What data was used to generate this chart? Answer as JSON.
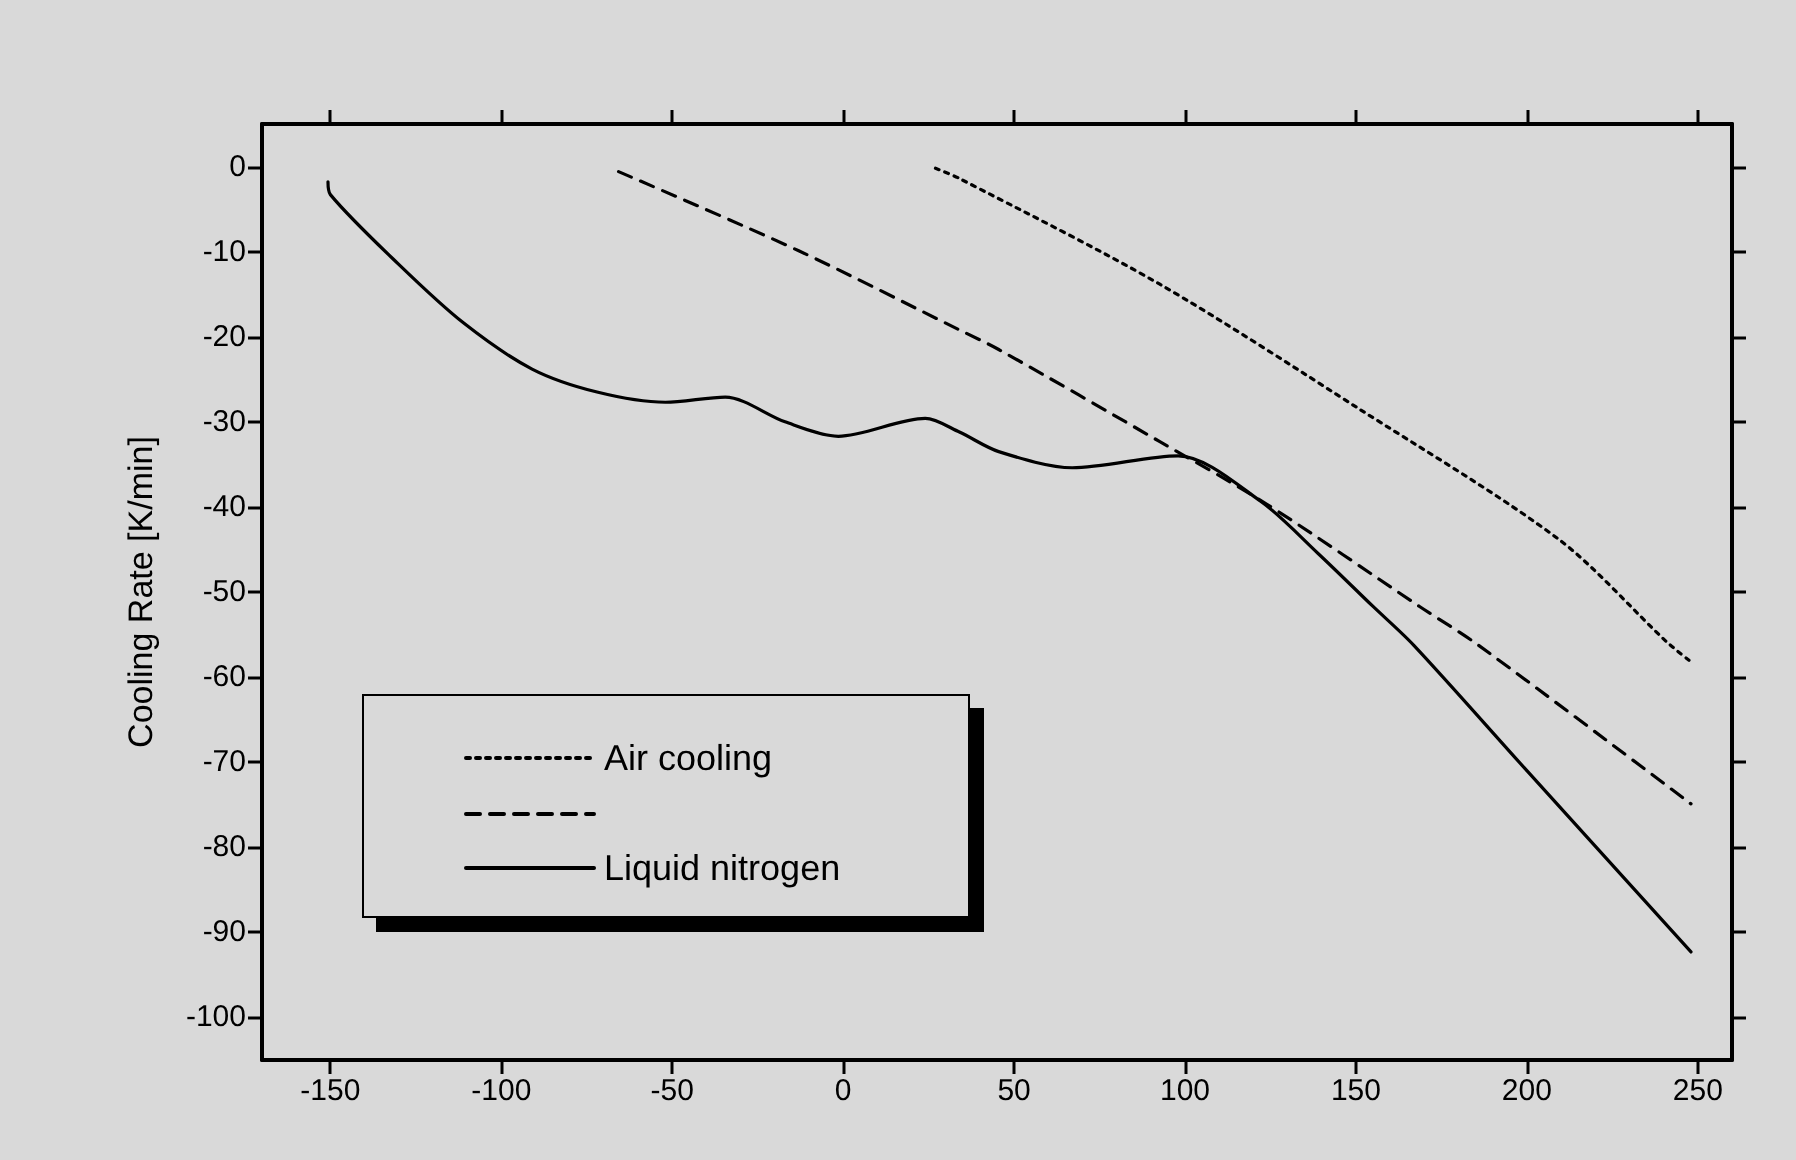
{
  "chart_data": {
    "type": "line",
    "ylabel": "Cooling Rate [K/min]",
    "xlim": [
      -170,
      260
    ],
    "ylim": [
      -105,
      5
    ],
    "xticks": [
      -150,
      -100,
      -50,
      0,
      50,
      100,
      150,
      200,
      250
    ],
    "yticks": [
      0,
      -10,
      -20,
      -30,
      -40,
      -50,
      -60,
      -70,
      -80,
      -90,
      -100
    ],
    "grid": false,
    "legend": "bottom left",
    "marker": "none",
    "series": [
      {
        "name": "Air cooling",
        "color": "#000000",
        "line_style": "dotted",
        "x": [
          27,
          34,
          92.5,
          151,
          209.6,
          241,
          248
        ],
        "values": [
          -0.2,
          -1.4,
          -13.8,
          -28.5,
          -43.9,
          -55.9,
          -58.2
        ]
      },
      {
        "color": "#000000",
        "line_style": "dashed",
        "x": [
          -65.7,
          -13,
          34,
          45.5,
          92.5,
          123.6,
          168.6,
          186,
          248
        ],
        "values": [
          -0.6,
          -9.9,
          -19.2,
          -21.5,
          -32.3,
          -39.6,
          -51.7,
          -56.3,
          -74.9
        ]
      },
      {
        "name": "Liquid nitrogen",
        "color": "#000000",
        "line_style": "solid",
        "x": [
          -150.7,
          -150,
          -130,
          -111,
          -91,
          -72,
          -52,
          -34.5,
          -17,
          -1.4,
          24,
          34,
          45.5,
          67,
          98,
          122,
          139,
          155,
          167,
          200,
          248
        ],
        "values": [
          -1.8,
          -3.3,
          -11.5,
          -18.4,
          -23.8,
          -26.5,
          -27.7,
          -27.1,
          -30,
          -31.7,
          -29.6,
          -31.2,
          -33.5,
          -35.4,
          -34,
          -39.3,
          -45.5,
          -51.7,
          -56.3,
          -71,
          -92.3
        ]
      }
    ]
  }
}
